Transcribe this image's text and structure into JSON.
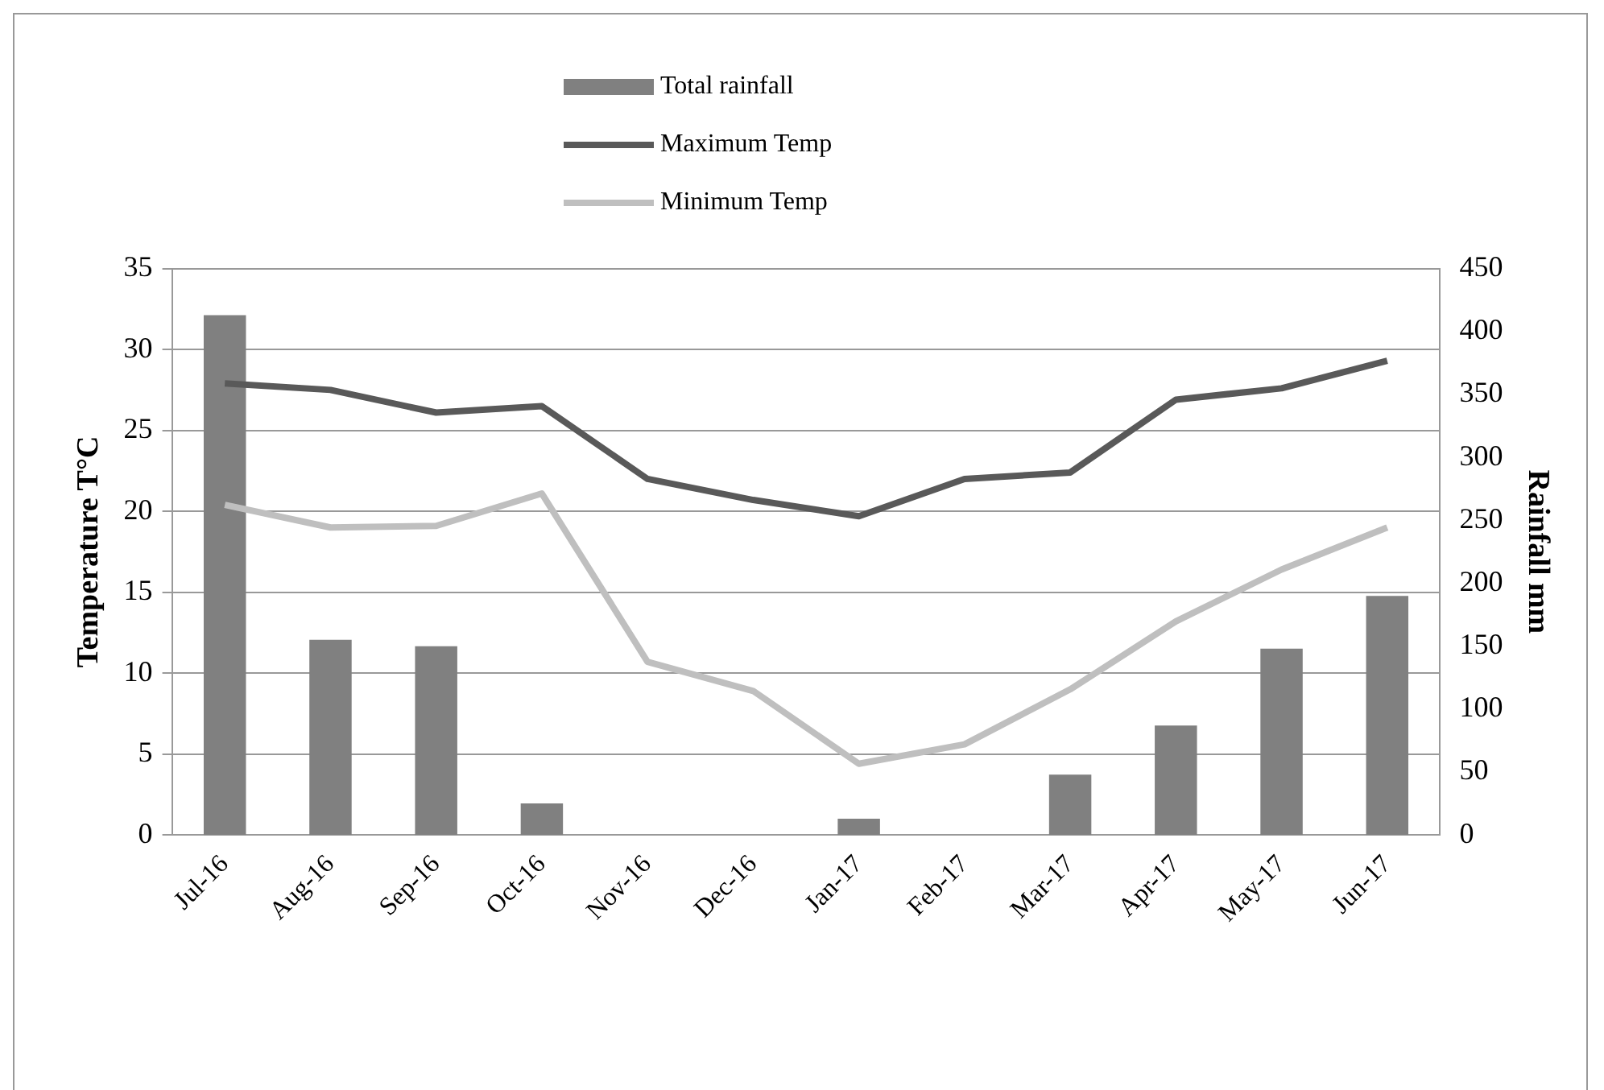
{
  "chart_data": {
    "type": "bar",
    "categories": [
      "Jul-16",
      "Aug-16",
      "Sep-16",
      "Oct-16",
      "Nov-16",
      "Dec-16",
      "Jan-17",
      "Feb-17",
      "Mar-17",
      "Apr-17",
      "May-17",
      "Jun-17"
    ],
    "series": [
      {
        "name": "Total rainfall",
        "axis": "y2",
        "color": "#808080",
        "values": [
          413,
          155,
          150,
          25,
          0,
          0,
          13,
          0,
          48,
          87,
          148,
          190
        ]
      },
      {
        "name": "Maximum Temp",
        "type": "line",
        "color": "#595959",
        "values": [
          27.9,
          27.5,
          26.1,
          26.5,
          22.0,
          20.7,
          19.7,
          22.0,
          22.4,
          26.9,
          27.6,
          29.3
        ]
      },
      {
        "name": "Minimum Temp",
        "type": "line",
        "color": "#bfbfbf",
        "values": [
          20.4,
          19.0,
          19.1,
          21.1,
          10.7,
          8.9,
          4.4,
          5.6,
          9.0,
          13.2,
          16.4,
          19.0
        ]
      }
    ],
    "ylabel": "Temperature T°C",
    "y2label": "Rainfall mm",
    "ylim": [
      0,
      35
    ],
    "yticks": [
      0,
      5,
      10,
      15,
      20,
      25,
      30,
      35
    ],
    "y2lim": [
      0,
      450
    ],
    "y2ticks": [
      0,
      50,
      100,
      150,
      200,
      250,
      300,
      350,
      400,
      450
    ],
    "grid": "y",
    "legend": "top",
    "marker": "none",
    "line_style": "solid"
  }
}
